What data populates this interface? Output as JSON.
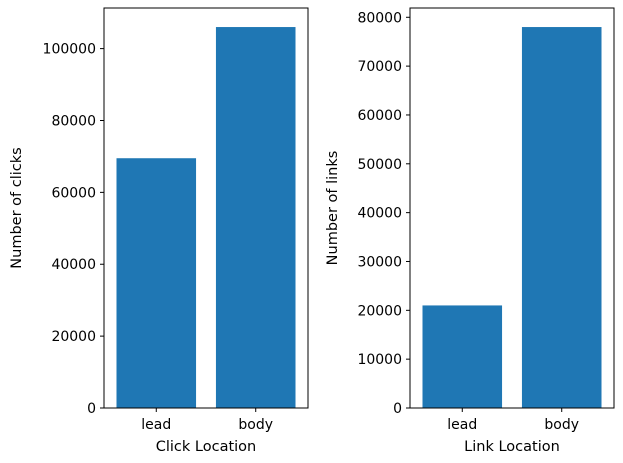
{
  "chart_data": [
    {
      "type": "bar",
      "categories": [
        "lead",
        "body"
      ],
      "values": [
        69500,
        106000
      ],
      "xlabel": "Click Location",
      "ylabel": "Number of clicks",
      "ylim": [
        0,
        111300
      ],
      "yticks": [
        0,
        20000,
        40000,
        60000,
        80000,
        100000
      ],
      "grid": false,
      "color": "#1f77b4"
    },
    {
      "type": "bar",
      "categories": [
        "lead",
        "body"
      ],
      "values": [
        21000,
        78000
      ],
      "xlabel": "Link Location",
      "ylabel": "Number of links",
      "ylim": [
        0,
        81900
      ],
      "yticks": [
        0,
        10000,
        20000,
        30000,
        40000,
        50000,
        60000,
        70000,
        80000
      ],
      "grid": false,
      "color": "#1f77b4"
    }
  ]
}
